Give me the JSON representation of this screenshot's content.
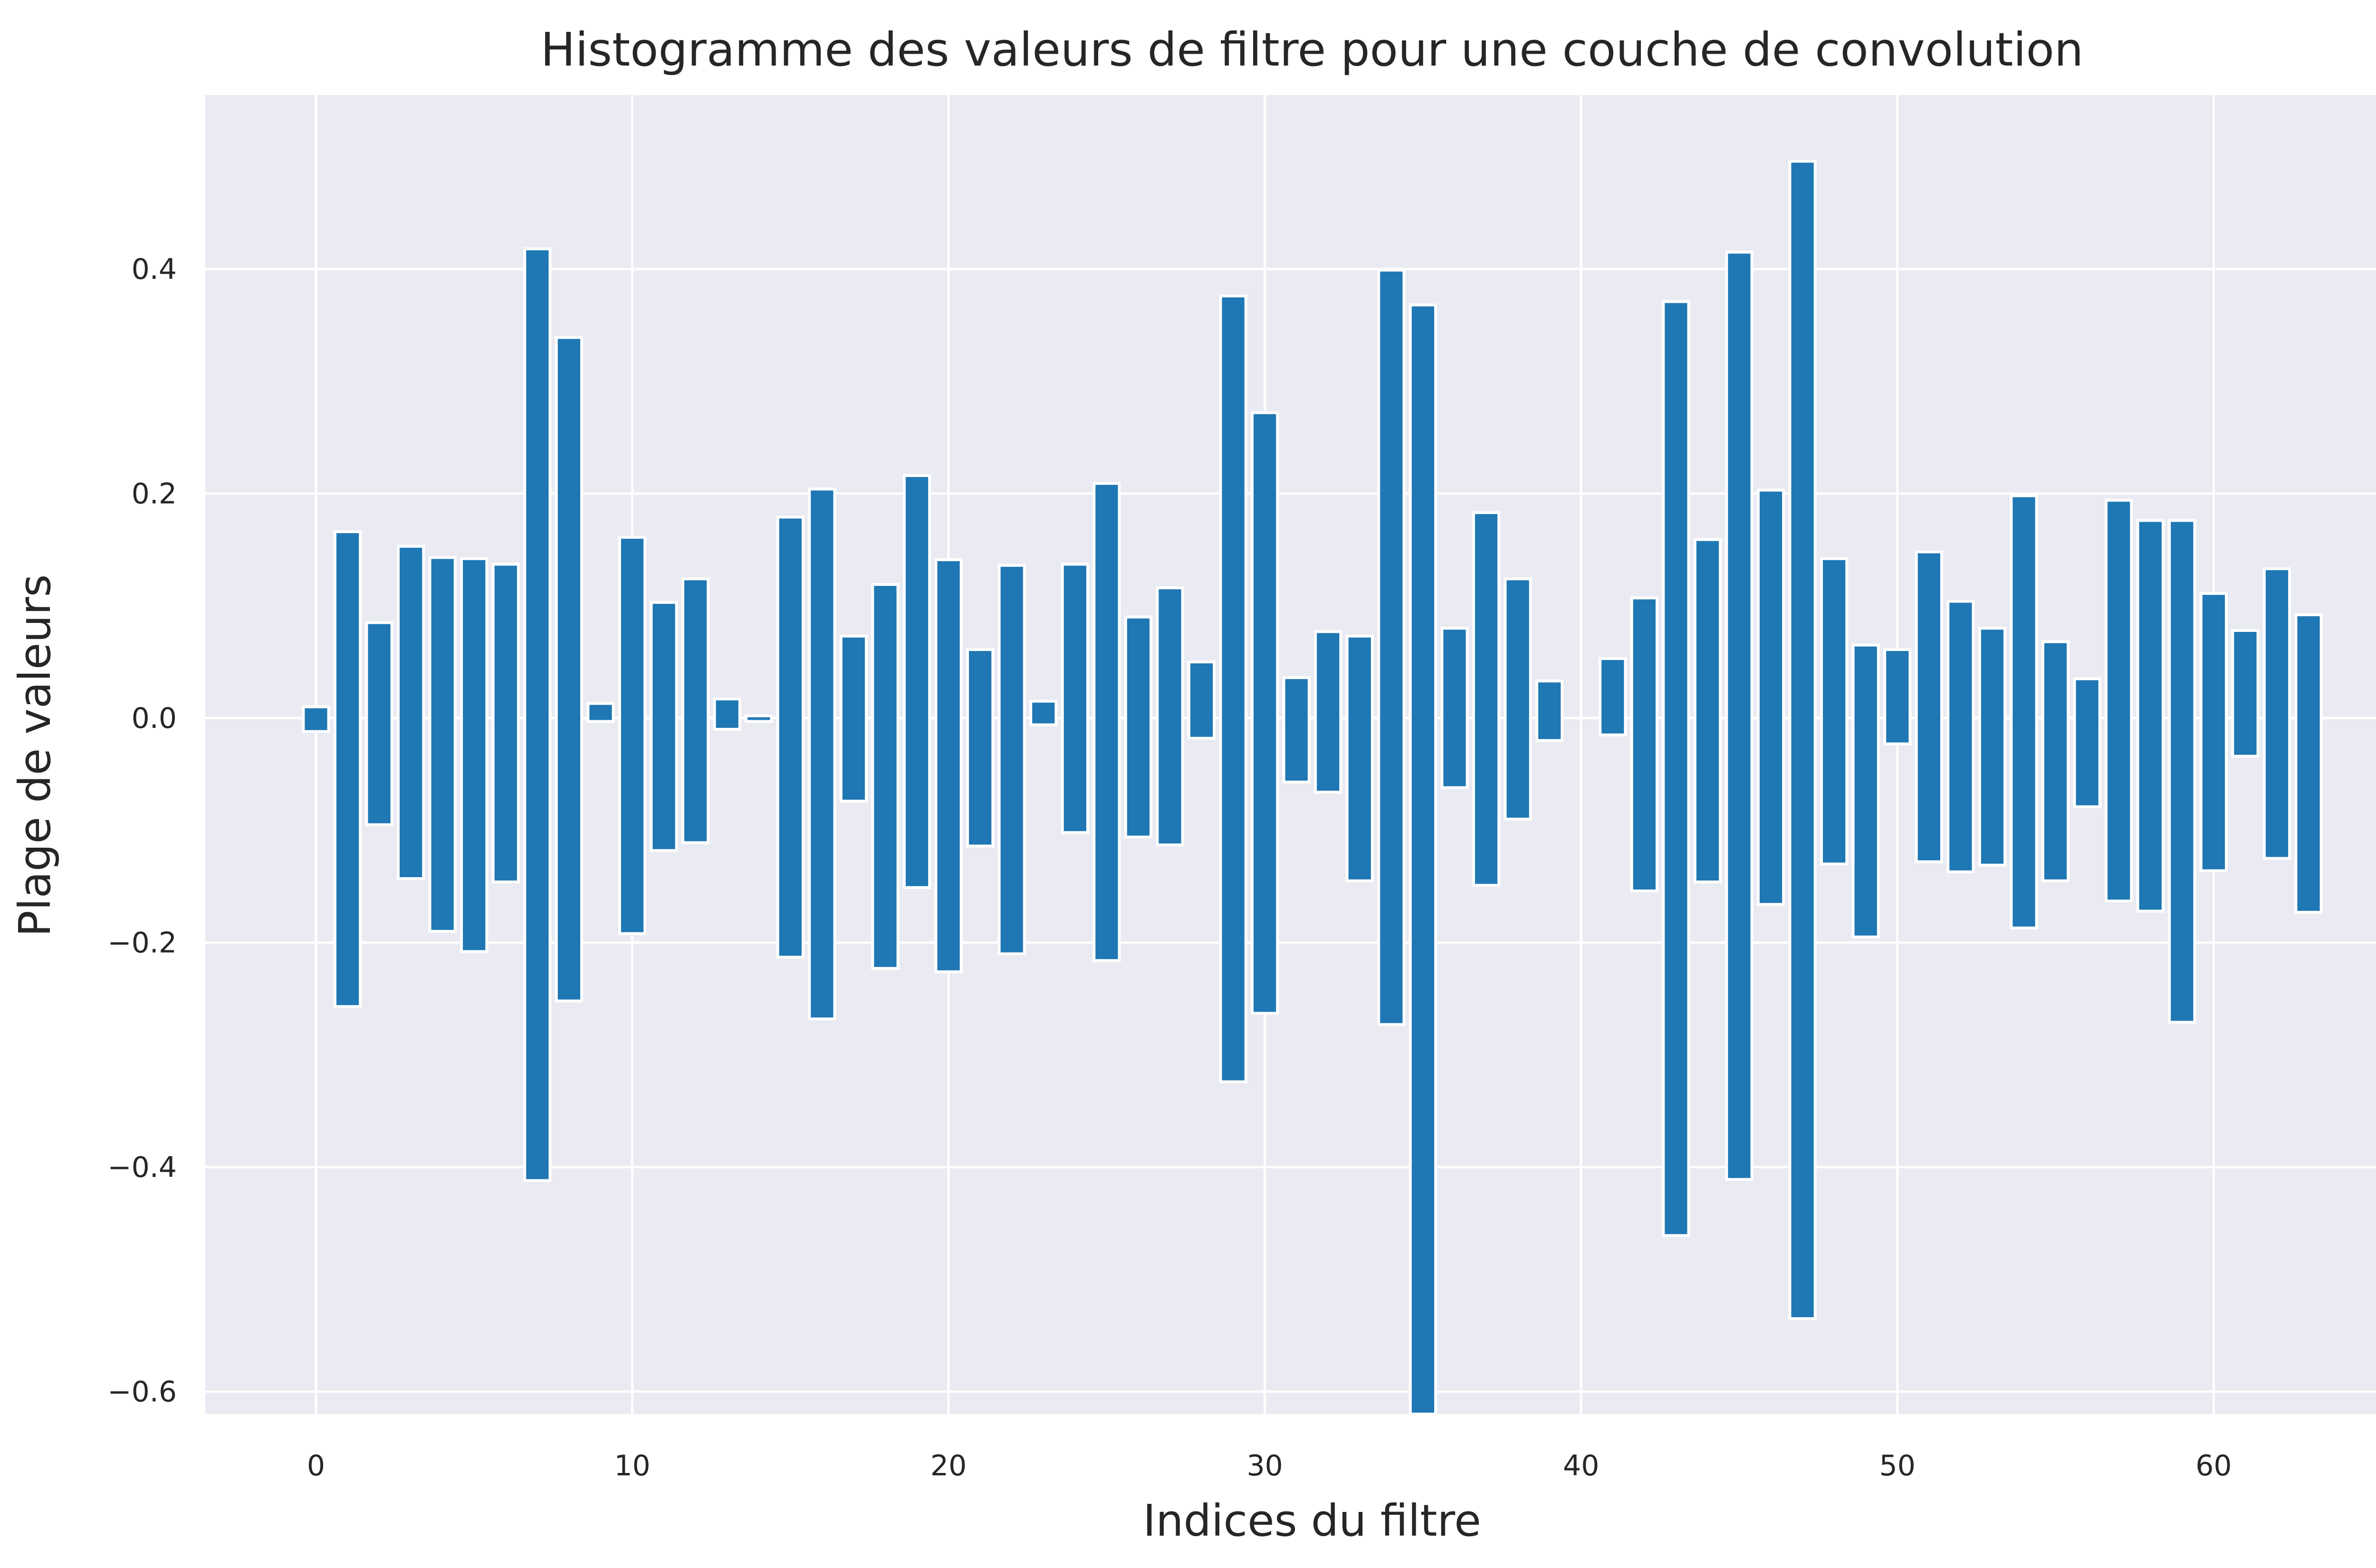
{
  "chart_data": {
    "type": "bar",
    "title": "Histogramme des valeurs de filtre pour une couche de convolution",
    "xlabel": "Indices du filtre",
    "ylabel": "Plage de valeurs",
    "xlim": [
      -3.5,
      66.5
    ],
    "ylim": [
      -0.62,
      0.555
    ],
    "xticks": [
      0,
      10,
      20,
      30,
      40,
      50,
      60
    ],
    "xtick_labels": [
      "0",
      "10",
      "20",
      "30",
      "40",
      "50",
      "60"
    ],
    "yticks": [
      -0.6,
      -0.4,
      -0.2,
      0.0,
      0.2,
      0.4
    ],
    "ytick_labels": [
      "−0.6",
      "−0.4",
      "−0.2",
      "0.0",
      "0.2",
      "0.4"
    ],
    "grid": true,
    "bar_color": "#1f77b4",
    "background": "#eaeaf2",
    "series": [
      {
        "x": [
          0,
          1,
          2,
          3,
          4,
          5,
          6,
          7,
          8,
          9,
          10,
          11,
          12,
          13,
          14,
          15,
          16,
          17,
          18,
          19,
          20,
          21,
          22,
          23,
          24,
          25,
          26,
          27,
          28,
          29,
          30,
          31,
          32,
          33,
          34,
          35,
          36,
          37,
          38,
          39,
          40,
          41,
          42,
          43,
          44,
          45,
          46,
          47,
          48,
          49,
          50,
          51,
          52,
          53,
          54,
          55,
          56,
          57,
          58,
          59,
          60,
          61,
          62,
          63
        ],
        "min": [
          -0.012,
          -0.257,
          -0.095,
          -0.143,
          -0.19,
          -0.208,
          -0.146,
          -0.412,
          -0.252,
          -0.003,
          -0.192,
          -0.118,
          -0.111,
          -0.01,
          -0.003,
          -0.213,
          -0.268,
          -0.074,
          -0.223,
          -0.151,
          -0.226,
          -0.114,
          -0.21,
          -0.006,
          -0.102,
          -0.216,
          -0.106,
          -0.113,
          -0.018,
          -0.324,
          -0.263,
          -0.057,
          -0.066,
          -0.145,
          -0.273,
          -0.62,
          -0.062,
          -0.149,
          -0.09,
          -0.02,
          0.0,
          -0.015,
          -0.154,
          -0.461,
          -0.146,
          -0.411,
          -0.166,
          -0.535,
          -0.13,
          -0.195,
          -0.023,
          -0.128,
          -0.137,
          -0.131,
          -0.187,
          -0.145,
          -0.079,
          -0.163,
          -0.172,
          -0.271,
          -0.136,
          -0.034,
          -0.125,
          -0.173
        ],
        "max": [
          0.01,
          0.166,
          0.085,
          0.153,
          0.143,
          0.142,
          0.137,
          0.418,
          0.339,
          0.013,
          0.161,
          0.103,
          0.124,
          0.017,
          0.002,
          0.179,
          0.204,
          0.073,
          0.119,
          0.216,
          0.141,
          0.061,
          0.136,
          0.015,
          0.137,
          0.209,
          0.09,
          0.116,
          0.05,
          0.376,
          0.272,
          0.036,
          0.077,
          0.073,
          0.399,
          0.368,
          0.08,
          0.183,
          0.124,
          0.033,
          0.0,
          0.053,
          0.107,
          0.371,
          0.159,
          0.415,
          0.203,
          0.496,
          0.142,
          0.065,
          0.061,
          0.148,
          0.104,
          0.08,
          0.198,
          0.068,
          0.035,
          0.194,
          0.176,
          0.176,
          0.111,
          0.078,
          0.133,
          0.092
        ]
      }
    ]
  }
}
